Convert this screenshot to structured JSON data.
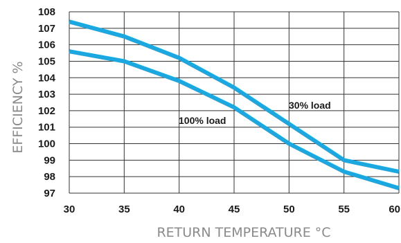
{
  "chart_data": {
    "type": "line",
    "xlabel": "RETURN TEMPERATURE °C",
    "ylabel": "EFFICIENCY %",
    "xlim": [
      30,
      60
    ],
    "ylim": [
      97,
      108
    ],
    "x_ticks": [
      "30",
      "35",
      "40",
      "45",
      "50",
      "55",
      "60"
    ],
    "y_ticks": [
      "97",
      "98",
      "99",
      "100",
      "101",
      "102",
      "103",
      "104",
      "105",
      "106",
      "107",
      "108"
    ],
    "grid": true,
    "series": [
      {
        "name": "30% load",
        "x": [
          30,
          35,
          40,
          45,
          50,
          55,
          60
        ],
        "values": [
          107.4,
          106.5,
          105.2,
          103.4,
          101.2,
          99.0,
          98.3
        ]
      },
      {
        "name": "100% load",
        "x": [
          30,
          35,
          40,
          45,
          50,
          55,
          60
        ],
        "values": [
          105.6,
          105.0,
          103.8,
          102.2,
          100.0,
          98.3,
          97.3
        ]
      }
    ],
    "colors": {
      "line": "#1ba8e0",
      "grid": "#333333",
      "text": "#1a1a1a",
      "axis_title": "#8a8a8a"
    }
  }
}
